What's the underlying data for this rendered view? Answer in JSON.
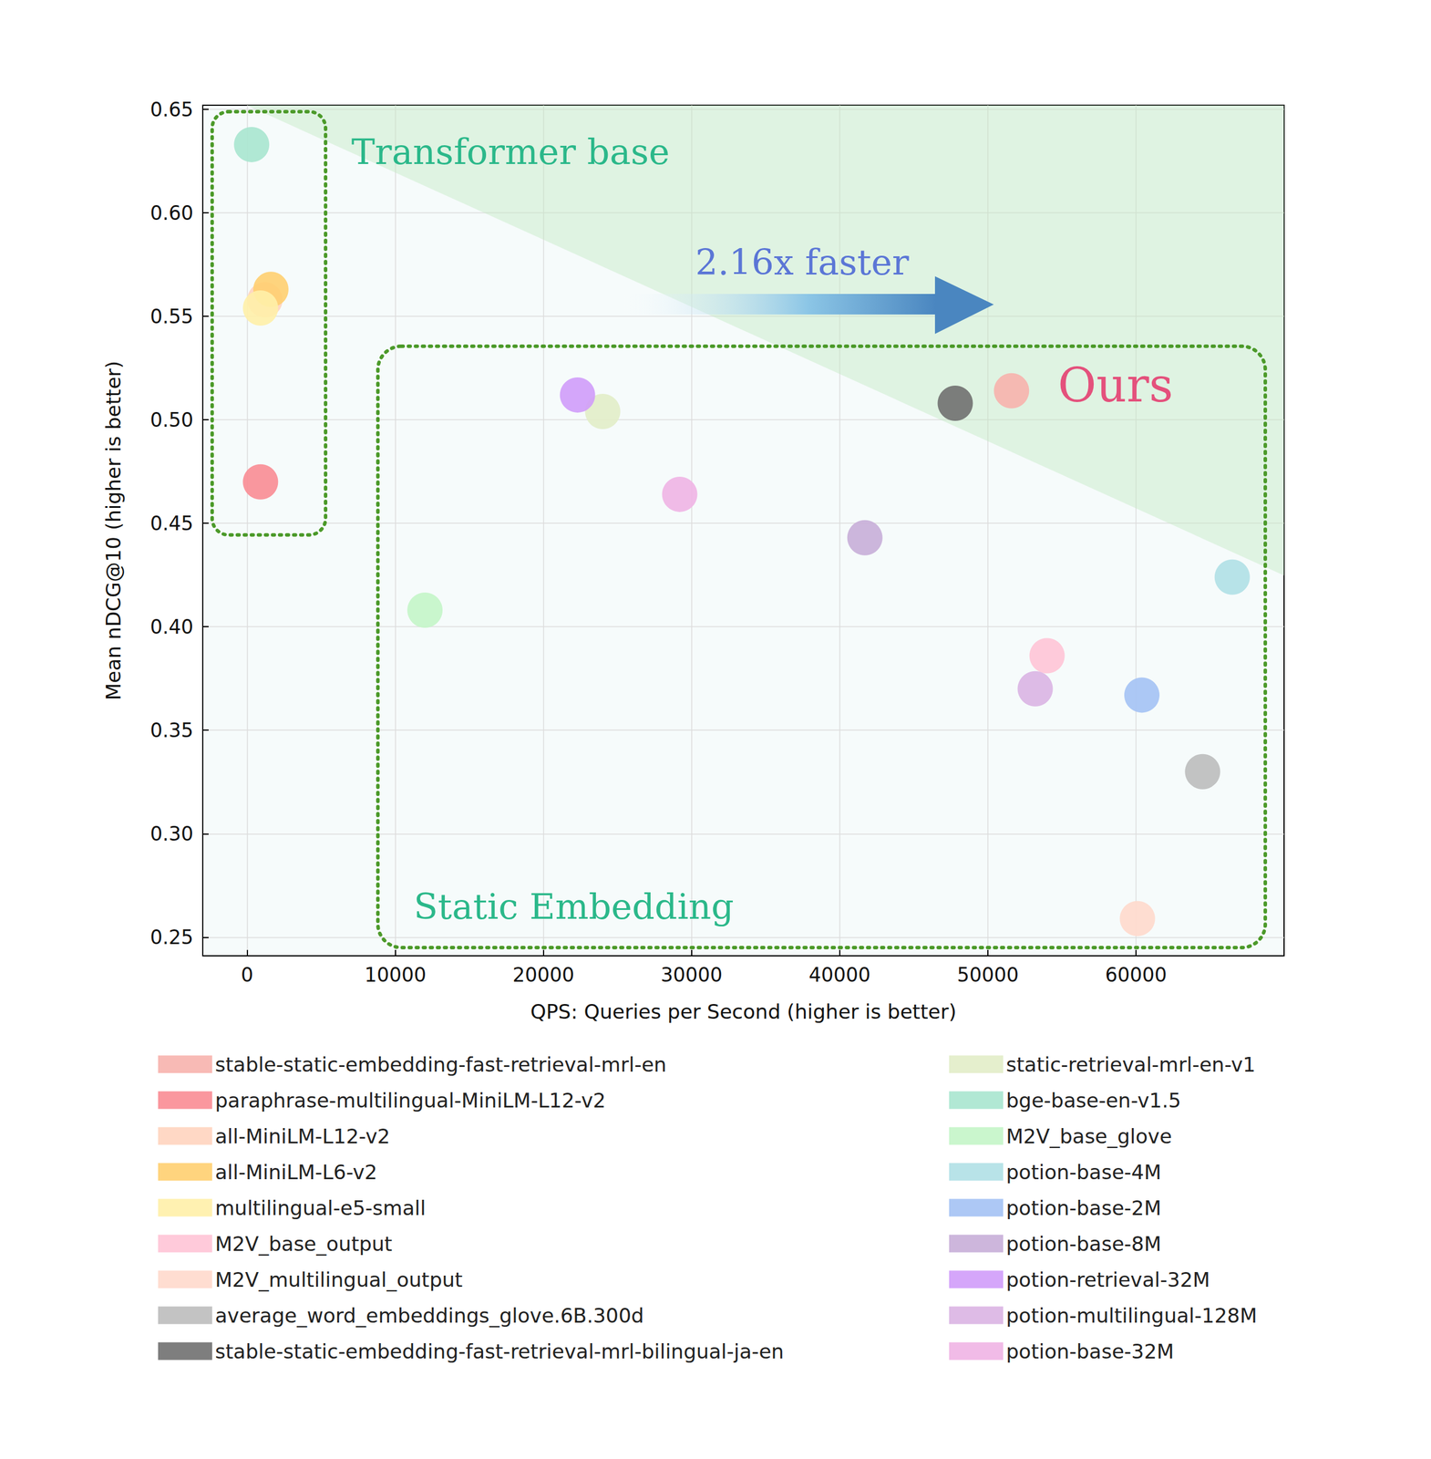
{
  "chart_data": {
    "type": "scatter",
    "marker": "circle",
    "x_label": "QPS: Queries per Second (higher is better)",
    "y_label": "Mean nDCG@10 (higher is better)",
    "xlim": [
      -3000,
      70000
    ],
    "xticks": [
      0,
      10000,
      20000,
      30000,
      40000,
      50000,
      60000
    ],
    "ylim": [
      0.241,
      0.652
    ],
    "yticks": [
      0.25,
      {
        "value": 0.3,
        "label": "0.30"
      },
      0.35,
      {
        "value": 0.4,
        "label": "0.40"
      },
      0.45,
      {
        "value": 0.5,
        "label": "0.50"
      },
      0.55,
      {
        "value": 0.6,
        "label": "0.60"
      },
      0.65
    ],
    "grid": true,
    "legend": "bottom",
    "annotations": [
      {
        "text": "Transformer base",
        "color": "#2bb88a"
      },
      {
        "text": "2.16x faster",
        "color": "#5b76d6"
      },
      {
        "text": "Ours",
        "color": "#e4517c"
      },
      {
        "text": "Static Embedding",
        "color": "#2bb88a"
      }
    ],
    "series": [
      {
        "name": "stable-static-embedding-fast-retrieval-mrl-en",
        "color": "#f7b2ad",
        "x": [
          51600
        ],
        "values": [
          0.514
        ]
      },
      {
        "name": "paraphrase-multilingual-MiniLM-L12-v2",
        "color": "#fa8c94",
        "x": [
          900
        ],
        "values": [
          0.47
        ]
      },
      {
        "name": "all-MiniLM-L12-v2",
        "color": "#ffd4bf",
        "x": [
          1200
        ],
        "values": [
          0.558
        ]
      },
      {
        "name": "all-MiniLM-L6-v2",
        "color": "#ffcf70",
        "x": [
          1600
        ],
        "values": [
          0.563
        ]
      },
      {
        "name": "multilingual-e5-small",
        "color": "#fff0a8",
        "x": [
          900
        ],
        "values": [
          0.554
        ]
      },
      {
        "name": "M2V_base_output",
        "color": "#ffc4d6",
        "x": [
          54000
        ],
        "values": [
          0.386
        ]
      },
      {
        "name": "M2V_multilingual_output",
        "color": "#ffd9cc",
        "x": [
          60100
        ],
        "values": [
          0.259
        ]
      },
      {
        "name": "average_word_embeddings_glove.6B.300d",
        "color": "#bdbdbd",
        "x": [
          64500
        ],
        "values": [
          0.33
        ]
      },
      {
        "name": "stable-static-embedding-fast-retrieval-mrl-bilingual-ja-en",
        "color": "#707070",
        "x": [
          47800
        ],
        "values": [
          0.508
        ]
      },
      {
        "name": "static-retrieval-mrl-en-v1",
        "color": "#e2edc8",
        "x": [
          24000
        ],
        "values": [
          0.504
        ]
      },
      {
        "name": "bge-base-en-v1.5",
        "color": "#a8e6cf",
        "x": [
          300
        ],
        "values": [
          0.633
        ]
      },
      {
        "name": "M2V_base_glove",
        "color": "#c4f5c8",
        "x": [
          12000
        ],
        "values": [
          0.408
        ]
      },
      {
        "name": "potion-base-4M",
        "color": "#b0e0e6",
        "x": [
          66500
        ],
        "values": [
          0.424
        ]
      },
      {
        "name": "potion-base-2M",
        "color": "#a4c2f4",
        "x": [
          60400
        ],
        "values": [
          0.367
        ]
      },
      {
        "name": "potion-base-8M",
        "color": "#c8aed8",
        "x": [
          41700
        ],
        "values": [
          0.443
        ]
      },
      {
        "name": "potion-retrieval-32M",
        "color": "#d09cfa",
        "x": [
          22300
        ],
        "values": [
          0.512
        ]
      },
      {
        "name": "potion-multilingual-128M",
        "color": "#dab4e3",
        "x": [
          53200
        ],
        "values": [
          0.37
        ]
      },
      {
        "name": "potion-base-32M",
        "color": "#f0b4e4",
        "x": [
          29200
        ],
        "values": [
          0.464
        ]
      }
    ]
  }
}
